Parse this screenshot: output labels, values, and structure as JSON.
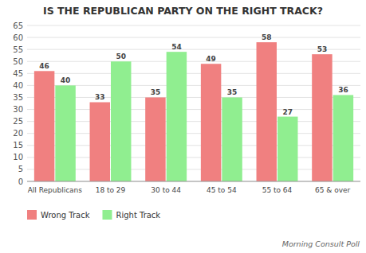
{
  "chart_data": {
    "type": "bar",
    "title": "IS THE REPUBLICAN PARTY ON THE RIGHT TRACK?",
    "source": "Morning Consult Poll",
    "categories": [
      "All Republicans",
      "18 to 29",
      "30 to 44",
      "45 to 54",
      "55 to 64",
      "65 & over"
    ],
    "series": [
      {
        "name": "Wrong Track",
        "color": "#F08080",
        "values": [
          46,
          33,
          35,
          49,
          58,
          53
        ]
      },
      {
        "name": "Right Track",
        "color": "#90EE90",
        "values": [
          40,
          50,
          54,
          35,
          27,
          36
        ]
      }
    ],
    "ylim": [
      0,
      65
    ],
    "yticks": [
      0,
      5,
      10,
      15,
      20,
      25,
      30,
      35,
      40,
      45,
      50,
      55,
      60,
      65
    ],
    "grid": true,
    "data_labels": true,
    "legend": "bottom"
  }
}
